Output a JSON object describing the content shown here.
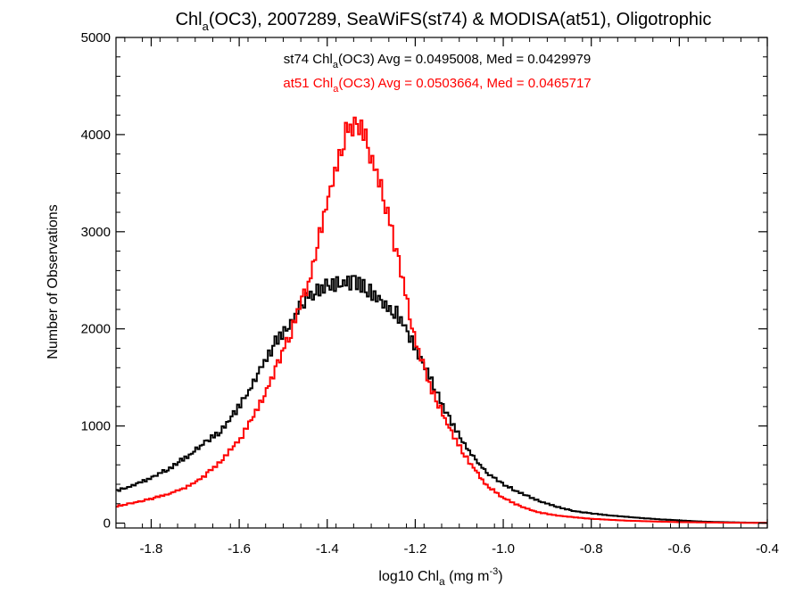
{
  "chart_data": {
    "type": "line",
    "step": true,
    "title": {
      "prefix": "Chl",
      "sub": "a",
      "rest": "(OC3), 2007289, SeaWiFS(st74) & MODISA(at51), Oligotrophic"
    },
    "xlabel": {
      "prefix": "log10 Chl",
      "sub": "a",
      "rest": " (mg m",
      "sup": "-3",
      "end": ")"
    },
    "ylabel": "Number of Observations",
    "xlim": [
      -1.88,
      -0.4
    ],
    "ylim": [
      -50,
      5000
    ],
    "xticks": [
      -1.8,
      -1.6,
      -1.4,
      -1.2,
      -1.0,
      -0.8,
      -0.6,
      -0.4
    ],
    "xtick_labels": [
      "-1.8",
      "-1.6",
      "-1.4",
      "-1.2",
      "-1.0",
      "-0.8",
      "-0.6",
      "-0.4"
    ],
    "yticks": [
      0,
      1000,
      2000,
      3000,
      4000,
      5000
    ],
    "ytick_labels": [
      "0",
      "1000",
      "2000",
      "3000",
      "4000",
      "5000"
    ],
    "grid": false,
    "annotations": [
      {
        "series": "st74",
        "color": "#000000",
        "pre": "st74 Chl",
        "sub": "a",
        "post": "(OC3) Avg = 0.0495008, Med = 0.0429979"
      },
      {
        "series": "at51",
        "color": "#ff0000",
        "pre": "at51 Chl",
        "sub": "a",
        "post": "(OC3) Avg = 0.0503664, Med = 0.0465717"
      }
    ],
    "series": [
      {
        "name": "st74",
        "color": "#000000",
        "x": [
          -1.88,
          -1.84,
          -1.8,
          -1.76,
          -1.72,
          -1.68,
          -1.64,
          -1.6,
          -1.56,
          -1.52,
          -1.48,
          -1.44,
          -1.4,
          -1.36,
          -1.32,
          -1.28,
          -1.24,
          -1.2,
          -1.16,
          -1.12,
          -1.08,
          -1.04,
          -1.0,
          -0.96,
          -0.92,
          -0.88,
          -0.84,
          -0.8,
          -0.76,
          -0.72,
          -0.68,
          -0.64,
          -0.6,
          -0.56,
          -0.52,
          -0.48,
          -0.44,
          -0.4
        ],
        "values": [
          330,
          390,
          460,
          560,
          680,
          820,
          960,
          1200,
          1500,
          1850,
          2100,
          2350,
          2430,
          2480,
          2450,
          2300,
          2150,
          1800,
          1450,
          1050,
          750,
          530,
          400,
          310,
          230,
          170,
          125,
          100,
          80,
          65,
          50,
          38,
          28,
          18,
          12,
          8,
          5,
          3
        ]
      },
      {
        "name": "at51",
        "color": "#ff0000",
        "x": [
          -1.88,
          -1.84,
          -1.8,
          -1.76,
          -1.72,
          -1.68,
          -1.64,
          -1.6,
          -1.56,
          -1.52,
          -1.48,
          -1.44,
          -1.42,
          -1.4,
          -1.38,
          -1.36,
          -1.34,
          -1.32,
          -1.3,
          -1.28,
          -1.26,
          -1.24,
          -1.22,
          -1.2,
          -1.16,
          -1.12,
          -1.08,
          -1.04,
          -1.0,
          -0.96,
          -0.92,
          -0.88,
          -0.84,
          -0.8,
          -0.76,
          -0.72,
          -0.68,
          -0.64,
          -0.6,
          -0.56,
          -0.52,
          -0.48,
          -0.44,
          -0.4
        ],
        "values": [
          170,
          210,
          250,
          300,
          370,
          480,
          650,
          850,
          1150,
          1550,
          2000,
          2500,
          2900,
          3300,
          3700,
          4000,
          4100,
          4000,
          3800,
          3500,
          3150,
          2750,
          2300,
          1850,
          1350,
          950,
          650,
          400,
          260,
          170,
          110,
          80,
          60,
          45,
          35,
          25,
          20,
          15,
          10,
          8,
          6,
          4,
          3,
          2
        ]
      }
    ]
  }
}
